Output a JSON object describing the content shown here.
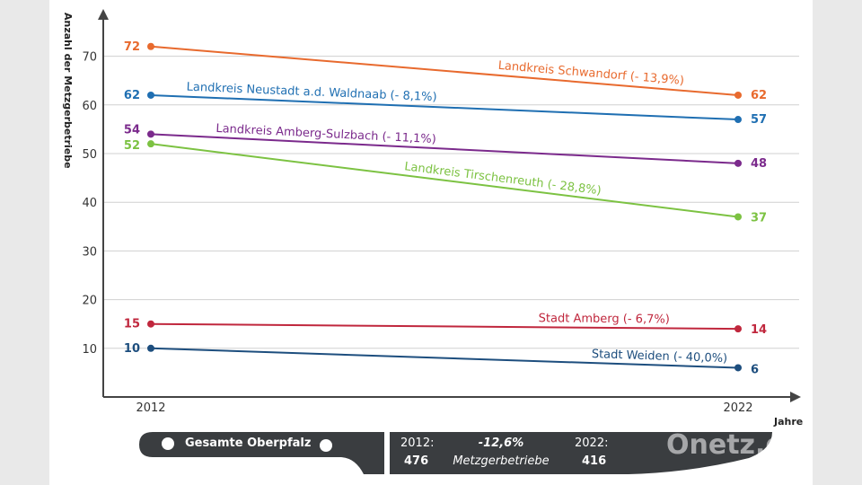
{
  "chart_data": {
    "type": "line",
    "x": [
      "2012",
      "2022"
    ],
    "ylabel": "Anzahl der Metzgerbetriebe",
    "xlabel": "Jahre",
    "ylim": [
      0,
      78
    ],
    "yticks": [
      10,
      20,
      30,
      40,
      50,
      60,
      70
    ],
    "grid": true,
    "series": [
      {
        "name": "Landkreis Schwandorf (- 13,9%)",
        "values": [
          72,
          62
        ],
        "color": "#e86a2e"
      },
      {
        "name": "Landkreis Neustadt a.d. Waldnaab (- 8,1%)",
        "values": [
          62,
          57
        ],
        "color": "#1f6fb2"
      },
      {
        "name": "Landkreis Amberg-Sulzbach (- 11,1%)",
        "values": [
          54,
          48
        ],
        "color": "#7b2a8c"
      },
      {
        "name": "Landkreis Tirschenreuth (- 28,8%)",
        "values": [
          52,
          37
        ],
        "color": "#7cc242"
      },
      {
        "name": "Stadt Amberg (- 6,7%)",
        "values": [
          15,
          14
        ],
        "color": "#c0273d"
      },
      {
        "name": "Stadt Weiden (- 40,0%)",
        "values": [
          10,
          6
        ],
        "color": "#1d4e7e"
      }
    ]
  },
  "summary": {
    "title": "Gesamte Oberpfalz",
    "year_start_label": "2012:",
    "value_start": "476",
    "change": "-12,6%",
    "unit": "Metzgerbetriebe",
    "year_end_label": "2022:",
    "value_end": "416",
    "color": "#3a3d40"
  },
  "watermark": {
    "text": "Onetz.de"
  }
}
